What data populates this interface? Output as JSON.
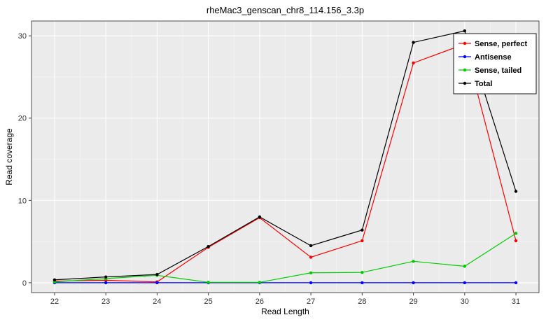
{
  "chart_data": {
    "type": "line",
    "title": "rheMac3_genscan_chr8_114.156_3.3p",
    "xlabel": "Read Length",
    "ylabel": "Read coverage",
    "x": [
      22,
      23,
      24,
      25,
      26,
      27,
      28,
      29,
      30,
      31
    ],
    "series": [
      {
        "name": "Sense, perfect",
        "color": "#FF0000",
        "values": [
          0.2,
          0.3,
          0.1,
          4.3,
          7.9,
          3.1,
          5.1,
          26.7,
          29.0,
          5.1
        ]
      },
      {
        "name": "Antisense",
        "color": "#0000FF",
        "values": [
          0.0,
          0.0,
          0.0,
          0.0,
          0.0,
          0.0,
          0.0,
          0.0,
          0.0,
          0.0
        ]
      },
      {
        "name": "Sense, tailed",
        "color": "#00CD00",
        "values": [
          0.1,
          0.5,
          0.9,
          0.05,
          0.05,
          1.2,
          1.25,
          2.6,
          2.0,
          6.0
        ]
      },
      {
        "name": "Total",
        "color": "#000000",
        "values": [
          0.35,
          0.7,
          1.0,
          4.4,
          8.0,
          4.5,
          6.4,
          29.2,
          30.6,
          11.1
        ]
      }
    ],
    "xticks": [
      22,
      23,
      24,
      25,
      26,
      27,
      28,
      29,
      30,
      31
    ],
    "yticks": [
      0,
      10,
      20,
      30
    ],
    "xlim": [
      21.55,
      31.45
    ],
    "ylim": [
      -1.2,
      31.8
    ],
    "grid": true,
    "legend_position": "top-right",
    "colors": {
      "panel_bg": "#EBEBEB",
      "grid_major": "#FFFFFF",
      "grid_minor": "#F4F4F4",
      "panel_border": "#4D4D4D",
      "tick": "#333333",
      "tick_label": "#333333",
      "legend_bg": "#FFFFFF",
      "legend_border": "#000000"
    }
  }
}
